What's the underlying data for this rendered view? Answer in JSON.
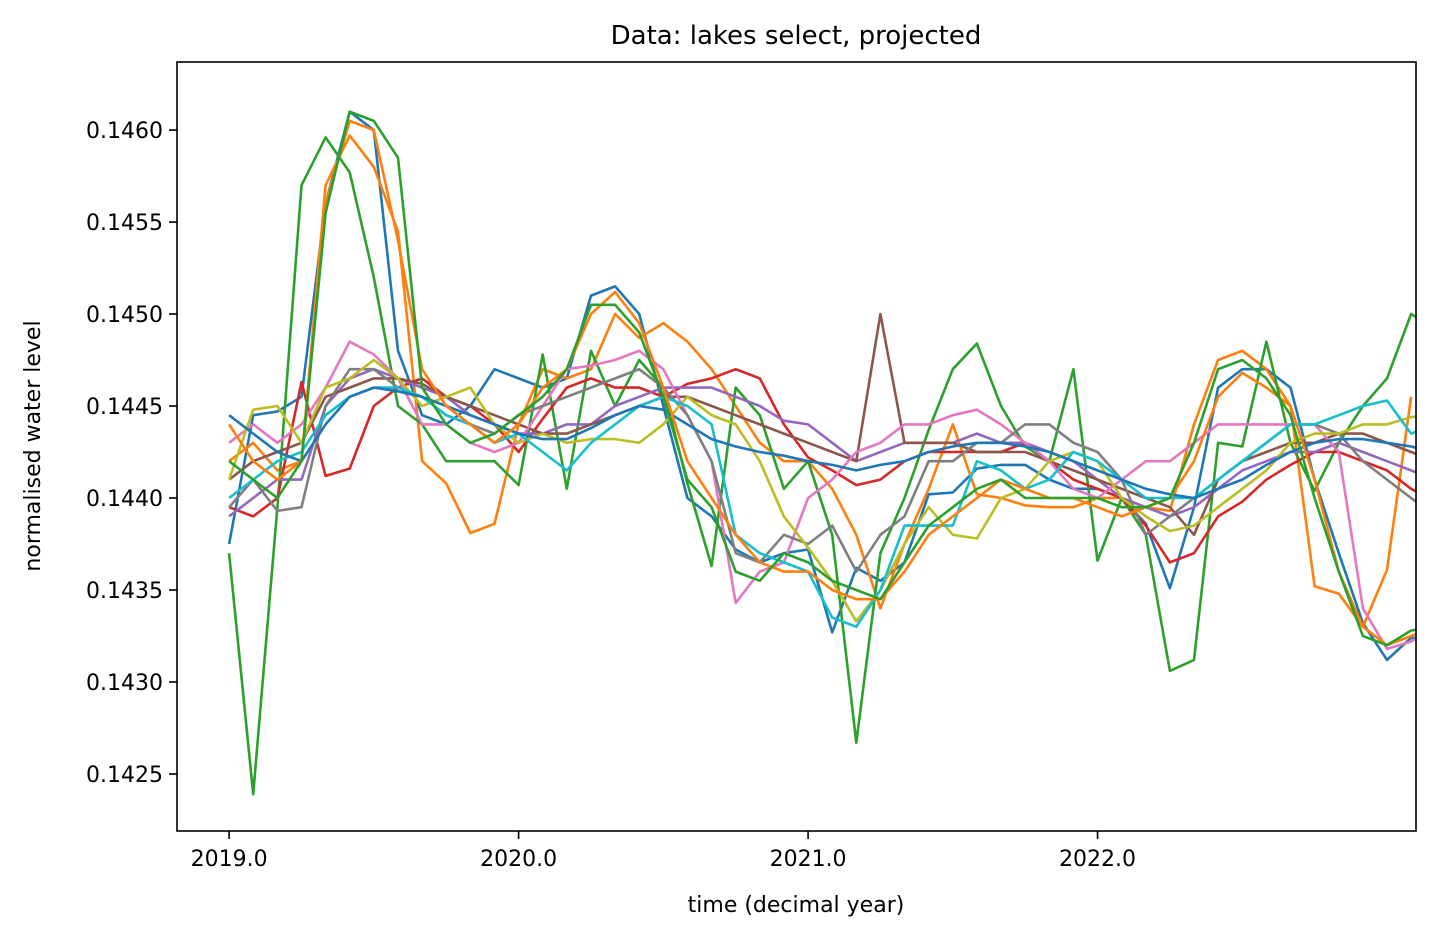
{
  "chart_data": {
    "type": "line",
    "title": "Data: lakes select, projected",
    "xlabel": "time (decimal year)",
    "ylabel": "normalised water level",
    "xlim": [
      2018.82,
      2023.1
    ],
    "ylim": [
      0.14219,
      0.14637
    ],
    "xticks": [
      2019.0,
      2020.0,
      2021.0,
      2022.0
    ],
    "xtick_labels": [
      "2019.0",
      "2020.0",
      "2021.0",
      "2022.0"
    ],
    "yticks": [
      0.1425,
      0.143,
      0.1435,
      0.144,
      0.1445,
      0.145,
      0.1455,
      0.146
    ],
    "ytick_labels": [
      "0.1425",
      "0.1430",
      "0.1435",
      "0.1440",
      "0.1445",
      "0.1450",
      "0.1455",
      "0.1460"
    ],
    "grid": false,
    "legend": "none",
    "x_start": 2019.0,
    "x_step": 0.08333,
    "colors": [
      "#1f77b4",
      "#ff7f0e",
      "#2ca02c",
      "#d62728",
      "#9467bd",
      "#8c564b",
      "#e377c2",
      "#7f7f7f",
      "#bcbd22",
      "#17becf"
    ],
    "series": [
      {
        "values": [
          0.14375,
          0.14445,
          0.14447,
          0.14455,
          0.1456,
          0.1461,
          0.146,
          0.1448,
          0.14445,
          0.1444,
          0.1445,
          0.1447,
          0.14465,
          0.1446,
          0.14465,
          0.1451,
          0.14515,
          0.145,
          0.1445,
          0.144,
          0.1439,
          0.14372,
          0.14365,
          0.1437,
          0.14372,
          0.14327,
          0.14362,
          0.14355,
          0.14365,
          0.14402,
          0.14403,
          0.14416,
          0.14418,
          0.14418,
          0.1441,
          0.14405,
          0.14405,
          0.144,
          0.14386,
          0.14351,
          0.14395,
          0.1446,
          0.1447,
          0.1447,
          0.1446,
          0.1441,
          0.1437,
          0.14332,
          0.14312,
          0.14324,
          0.14323,
          0.14354
        ]
      },
      {
        "values": [
          0.1442,
          0.1443,
          0.14415,
          0.1442,
          0.1457,
          0.14597,
          0.1458,
          0.14545,
          0.1442,
          0.14408,
          0.14381,
          0.14386,
          0.1444,
          0.1447,
          0.14465,
          0.1447,
          0.145,
          0.14487,
          0.14495,
          0.14485,
          0.1447,
          0.1445,
          0.1443,
          0.1442,
          0.1442,
          0.14405,
          0.1438,
          0.1434,
          0.14375,
          0.14405,
          0.1444,
          0.14402,
          0.144,
          0.14396,
          0.14395,
          0.14395,
          0.144,
          0.144,
          0.14395,
          0.14393,
          0.1444,
          0.14475,
          0.1448,
          0.1447,
          0.1445,
          0.14352,
          0.14348,
          0.1433,
          0.14361,
          0.14455
        ]
      },
      {
        "values": [
          0.1437,
          0.14239,
          0.14395,
          0.1457,
          0.14596,
          0.14577,
          0.1452,
          0.1445,
          0.1444,
          0.1442,
          0.1442,
          0.1442,
          0.14407,
          0.14478,
          0.14405,
          0.1448,
          0.1445,
          0.14475,
          0.1446,
          0.14408,
          0.14363,
          0.1446,
          0.14445,
          0.14405,
          0.1442,
          0.1438,
          0.14267,
          0.1437,
          0.144,
          0.14437,
          0.1447,
          0.14484,
          0.1445,
          0.14428,
          0.1442,
          0.1447,
          0.14366,
          0.144,
          0.1438,
          0.14306,
          0.14312,
          0.1443,
          0.14428,
          0.14485,
          0.1443,
          0.14404,
          0.1443,
          0.1445,
          0.14465,
          0.145,
          0.14492
        ]
      },
      {
        "values": [
          0.14395,
          0.1439,
          0.144,
          0.14463,
          0.14412,
          0.14416,
          0.1445,
          0.1446,
          0.14465,
          0.14455,
          0.1445,
          0.1444,
          0.14425,
          0.14443,
          0.1446,
          0.14465,
          0.1446,
          0.1446,
          0.14455,
          0.14462,
          0.14465,
          0.1447,
          0.14465,
          0.1444,
          0.14422,
          0.14415,
          0.14407,
          0.1441,
          0.1442,
          0.14425,
          0.14425,
          0.14425,
          0.14425,
          0.1443,
          0.1442,
          0.1441,
          0.14405,
          0.144,
          0.14385,
          0.14365,
          0.1437,
          0.1439,
          0.14398,
          0.1441,
          0.14418,
          0.14425,
          0.14425,
          0.1442,
          0.14415,
          0.14405,
          0.14398,
          0.1438
        ]
      },
      {
        "values": [
          0.1439,
          0.144,
          0.1441,
          0.1441,
          0.1445,
          0.14465,
          0.1447,
          0.14465,
          0.1446,
          0.14455,
          0.14445,
          0.1444,
          0.14435,
          0.14435,
          0.1444,
          0.1444,
          0.1445,
          0.14455,
          0.1446,
          0.1446,
          0.1446,
          0.14455,
          0.1445,
          0.14442,
          0.1444,
          0.1443,
          0.1442,
          0.14425,
          0.1443,
          0.1443,
          0.1443,
          0.14435,
          0.1443,
          0.1443,
          0.14425,
          0.1442,
          0.1441,
          0.144,
          0.14395,
          0.1439,
          0.14395,
          0.14405,
          0.14415,
          0.1442,
          0.14425,
          0.14425,
          0.1443,
          0.14425,
          0.1442,
          0.14415,
          0.1441,
          0.1442
        ]
      },
      {
        "values": [
          0.1441,
          0.1442,
          0.14425,
          0.1443,
          0.14455,
          0.1446,
          0.14465,
          0.14465,
          0.14462,
          0.14455,
          0.1445,
          0.14445,
          0.1444,
          0.14435,
          0.14435,
          0.1444,
          0.14445,
          0.1445,
          0.14455,
          0.14455,
          0.1445,
          0.14445,
          0.1444,
          0.14435,
          0.1443,
          0.14425,
          0.1442,
          0.145,
          0.1443,
          0.1443,
          0.1443,
          0.14425,
          0.14425,
          0.14425,
          0.1442,
          0.14415,
          0.1441,
          0.14405,
          0.144,
          0.14395,
          0.1438,
          0.1441,
          0.1442,
          0.14425,
          0.1443,
          0.1443,
          0.14435,
          0.14435,
          0.1443,
          0.14425,
          0.1442,
          0.14415
        ]
      },
      {
        "values": [
          0.1443,
          0.1444,
          0.1443,
          0.1444,
          0.1446,
          0.14485,
          0.14478,
          0.14465,
          0.1444,
          0.1444,
          0.1443,
          0.14425,
          0.1443,
          0.1445,
          0.1447,
          0.14472,
          0.14475,
          0.1448,
          0.1447,
          0.14445,
          0.1442,
          0.14343,
          0.1436,
          0.14365,
          0.144,
          0.1441,
          0.14425,
          0.1443,
          0.1444,
          0.1444,
          0.14445,
          0.14448,
          0.1444,
          0.1443,
          0.1442,
          0.14405,
          0.144,
          0.1441,
          0.1442,
          0.1442,
          0.1443,
          0.1444,
          0.1444,
          0.1444,
          0.1444,
          0.1444,
          0.14425,
          0.1434,
          0.14318,
          0.14322,
          0.1433
        ]
      },
      {
        "values": [
          0.14395,
          0.1441,
          0.14393,
          0.14395,
          0.1445,
          0.1447,
          0.1447,
          0.1446,
          0.14455,
          0.14445,
          0.1444,
          0.14435,
          0.14445,
          0.1445,
          0.14455,
          0.1446,
          0.14465,
          0.1447,
          0.1446,
          0.14445,
          0.1442,
          0.1437,
          0.14365,
          0.1438,
          0.14375,
          0.14385,
          0.1436,
          0.1438,
          0.1439,
          0.1442,
          0.1442,
          0.1443,
          0.1443,
          0.1444,
          0.1444,
          0.1443,
          0.14425,
          0.1441,
          0.1438,
          0.1439,
          0.144,
          0.1441,
          0.1442,
          0.1443,
          0.1444,
          0.1444,
          0.14435,
          0.1442,
          0.1441,
          0.144,
          0.1439,
          0.1437
        ]
      },
      {
        "values": [
          0.1441,
          0.14448,
          0.1445,
          0.1443,
          0.1446,
          0.14465,
          0.14475,
          0.14465,
          0.1445,
          0.14455,
          0.1446,
          0.1444,
          0.1443,
          0.14435,
          0.1443,
          0.14432,
          0.14432,
          0.1443,
          0.1444,
          0.14455,
          0.14445,
          0.1444,
          0.1442,
          0.1439,
          0.14373,
          0.14355,
          0.14333,
          0.1435,
          0.14375,
          0.14395,
          0.1438,
          0.14378,
          0.144,
          0.14405,
          0.1442,
          0.14425,
          0.1442,
          0.144,
          0.1439,
          0.14382,
          0.14385,
          0.14395,
          0.14405,
          0.14415,
          0.1443,
          0.14435,
          0.14435,
          0.1444,
          0.1444,
          0.14444,
          0.14445
        ]
      },
      {
        "values": [
          0.144,
          0.1441,
          0.1442,
          0.14425,
          0.14445,
          0.14455,
          0.1446,
          0.1446,
          0.14455,
          0.14445,
          0.1444,
          0.1443,
          0.14435,
          0.14425,
          0.14415,
          0.1443,
          0.1444,
          0.1445,
          0.14455,
          0.1445,
          0.1444,
          0.1438,
          0.1437,
          0.14365,
          0.1436,
          0.14335,
          0.1433,
          0.1435,
          0.14385,
          0.14385,
          0.14385,
          0.1442,
          0.14415,
          0.14405,
          0.1441,
          0.14425,
          0.1442,
          0.1441,
          0.144,
          0.144,
          0.144,
          0.1441,
          0.1442,
          0.1443,
          0.1444,
          0.1444,
          0.14445,
          0.1445,
          0.14453,
          0.14435,
          0.1444
        ]
      },
      {
        "values": [
          0.14445,
          0.14435,
          0.14425,
          0.1442,
          0.1444,
          0.14455,
          0.1446,
          0.14458,
          0.14455,
          0.1445,
          0.14445,
          0.1444,
          0.14435,
          0.14432,
          0.14432,
          0.14438,
          0.14445,
          0.1445,
          0.14448,
          0.1444,
          0.14432,
          0.14428,
          0.14425,
          0.14423,
          0.1442,
          0.14418,
          0.14415,
          0.14418,
          0.1442,
          0.14425,
          0.14428,
          0.1443,
          0.1443,
          0.14428,
          0.14425,
          0.1442,
          0.14415,
          0.1441,
          0.14405,
          0.14402,
          0.144,
          0.14405,
          0.1441,
          0.14418,
          0.14425,
          0.1443,
          0.14432,
          0.14432,
          0.1443,
          0.14428,
          0.14425,
          0.14425
        ]
      },
      {
        "values": [
          0.1444,
          0.1442,
          0.1441,
          0.1442,
          0.1456,
          0.14605,
          0.146,
          0.1454,
          0.1447,
          0.1445,
          0.1444,
          0.1443,
          0.1444,
          0.1446,
          0.1447,
          0.145,
          0.14512,
          0.14495,
          0.1446,
          0.1442,
          0.144,
          0.1438,
          0.14365,
          0.1436,
          0.1436,
          0.1435,
          0.14345,
          0.14345,
          0.1436,
          0.1438,
          0.1439,
          0.144,
          0.1441,
          0.14405,
          0.144,
          0.144,
          0.14395,
          0.1439,
          0.14395,
          0.144,
          0.1442,
          0.14455,
          0.14468,
          0.1446,
          0.1445,
          0.1441,
          0.1436,
          0.1433,
          0.1432,
          0.14325,
          0.1433
        ]
      },
      {
        "values": [
          0.1442,
          0.1441,
          0.144,
          0.1442,
          0.14555,
          0.1461,
          0.14605,
          0.14585,
          0.1446,
          0.1444,
          0.1443,
          0.14435,
          0.14445,
          0.14455,
          0.1447,
          0.14505,
          0.14505,
          0.1449,
          0.14455,
          0.1441,
          0.14395,
          0.1436,
          0.14355,
          0.1437,
          0.14365,
          0.14355,
          0.1435,
          0.14345,
          0.14365,
          0.14385,
          0.14395,
          0.14405,
          0.1441,
          0.144,
          0.144,
          0.144,
          0.144,
          0.14395,
          0.14395,
          0.144,
          0.1443,
          0.1447,
          0.14475,
          0.14465,
          0.14445,
          0.144,
          0.1436,
          0.14325,
          0.1432,
          0.14328,
          0.1433
        ]
      }
    ]
  }
}
